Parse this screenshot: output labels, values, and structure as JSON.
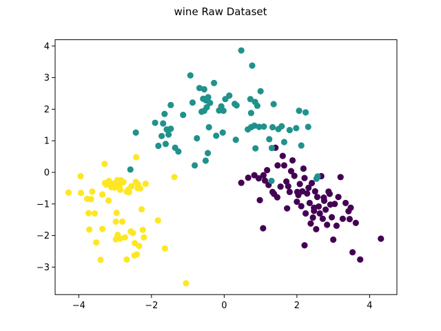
{
  "chart_data": {
    "type": "scatter",
    "title": "wine Raw Dataset",
    "xlabel": "",
    "ylabel": "",
    "xlim": [
      -4.65,
      4.75
    ],
    "ylim": [
      -3.87,
      4.2
    ],
    "xticks": [
      -4,
      -2,
      0,
      2,
      4
    ],
    "yticks": [
      -3,
      -2,
      -1,
      0,
      1,
      2,
      3,
      4
    ],
    "grid": false,
    "series": [
      {
        "color": "#440154",
        "points": [
          [
            0.47,
            -0.33
          ],
          [
            0.66,
            -0.17
          ],
          [
            0.95,
            -0.19
          ],
          [
            1.08,
            -0.09
          ],
          [
            1.12,
            -0.26
          ],
          [
            1.18,
            0.07
          ],
          [
            1.33,
            -0.62
          ],
          [
            1.37,
            -0.68
          ],
          [
            1.41,
            0.78
          ],
          [
            1.47,
            0.22
          ],
          [
            1.55,
            -0.45
          ],
          [
            1.61,
            0.52
          ],
          [
            1.65,
            0.22
          ],
          [
            1.71,
            -0.29
          ],
          [
            1.76,
            -0.44
          ],
          [
            1.8,
            -0.62
          ],
          [
            1.84,
            0.04
          ],
          [
            1.88,
            0.38
          ],
          [
            1.93,
            -0.11
          ],
          [
            2.0,
            -0.93
          ],
          [
            2.04,
            -0.72
          ],
          [
            2.08,
            -0.37
          ],
          [
            2.12,
            -1.07
          ],
          [
            2.15,
            -0.6
          ],
          [
            2.18,
            0.12
          ],
          [
            2.21,
            -0.18
          ],
          [
            2.24,
            -1.3
          ],
          [
            2.28,
            -0.67
          ],
          [
            2.32,
            -0.49
          ],
          [
            2.35,
            -0.97
          ],
          [
            2.38,
            -1.62
          ],
          [
            2.41,
            -0.34
          ],
          [
            2.44,
            -1.43
          ],
          [
            2.47,
            -1.12
          ],
          [
            2.5,
            -0.6
          ],
          [
            2.53,
            -1.8
          ],
          [
            2.56,
            -0.78
          ],
          [
            2.6,
            -1.08
          ],
          [
            2.63,
            -1.3
          ],
          [
            2.67,
            -0.12
          ],
          [
            2.71,
            -1.47
          ],
          [
            2.75,
            -0.9
          ],
          [
            2.79,
            -1.18
          ],
          [
            2.83,
            -1.66
          ],
          [
            2.87,
            -0.61
          ],
          [
            2.92,
            -1.02
          ],
          [
            2.96,
            -1.42
          ],
          [
            3.0,
            -2.13
          ],
          [
            3.04,
            -1.0
          ],
          [
            3.09,
            -1.69
          ],
          [
            3.14,
            -0.78
          ],
          [
            3.2,
            -0.15
          ],
          [
            3.26,
            -1.47
          ],
          [
            3.34,
            -0.97
          ],
          [
            3.42,
            -1.23
          ],
          [
            3.48,
            -1.12
          ],
          [
            3.53,
            -2.53
          ],
          [
            3.62,
            -1.6
          ],
          [
            3.74,
            -2.76
          ],
          [
            4.31,
            -2.1
          ],
          [
            0.83,
            -0.09
          ],
          [
            0.98,
            -0.88
          ],
          [
            1.07,
            -1.77
          ],
          [
            1.22,
            -0.4
          ],
          [
            1.46,
            -0.79
          ],
          [
            1.73,
            -1.14
          ],
          [
            2.01,
            -0.62
          ],
          [
            2.21,
            -2.31
          ],
          [
            2.47,
            -1.22
          ],
          [
            2.74,
            -0.8
          ],
          [
            2.9,
            -0.68
          ],
          [
            3.45,
            -1.48
          ]
        ]
      },
      {
        "color": "#21918c",
        "points": [
          [
            -2.43,
            1.26
          ],
          [
            -2.58,
            0.09
          ],
          [
            -1.9,
            1.57
          ],
          [
            -1.81,
            0.84
          ],
          [
            -1.72,
            1.15
          ],
          [
            -1.68,
            1.55
          ],
          [
            -1.61,
            0.9
          ],
          [
            -1.58,
            1.36
          ],
          [
            -1.53,
            1.2
          ],
          [
            -1.47,
            1.38
          ],
          [
            -1.35,
            0.78
          ],
          [
            -1.26,
            0.66
          ],
          [
            -1.13,
            1.82
          ],
          [
            -0.93,
            3.07
          ],
          [
            -0.87,
            2.21
          ],
          [
            -0.81,
            0.22
          ],
          [
            -0.75,
            1.08
          ],
          [
            -0.68,
            2.67
          ],
          [
            -0.62,
            1.92
          ],
          [
            -0.58,
            2.33
          ],
          [
            -0.55,
            2.63
          ],
          [
            -0.51,
            0.37
          ],
          [
            -0.48,
            2.06
          ],
          [
            -0.45,
            0.61
          ],
          [
            -0.42,
            1.43
          ],
          [
            -0.39,
            2.2
          ],
          [
            -0.28,
            2.83
          ],
          [
            -0.22,
            1.16
          ],
          [
            -0.14,
            1.96
          ],
          [
            -0.08,
            2.09
          ],
          [
            0.03,
            2.32
          ],
          [
            0.14,
            2.43
          ],
          [
            0.32,
            1.03
          ],
          [
            0.34,
            2.12
          ],
          [
            0.47,
            3.86
          ],
          [
            0.65,
            1.36
          ],
          [
            0.74,
            1.43
          ],
          [
            0.77,
            3.38
          ],
          [
            0.83,
            1.48
          ],
          [
            0.86,
            0.76
          ],
          [
            0.91,
            2.11
          ],
          [
            0.96,
            1.44
          ],
          [
            1.0,
            2.57
          ],
          [
            1.09,
            1.45
          ],
          [
            1.24,
            1.05
          ],
          [
            1.31,
            0.77
          ],
          [
            1.33,
            1.43
          ],
          [
            1.36,
            2.16
          ],
          [
            1.49,
            1.37
          ],
          [
            1.58,
            1.46
          ],
          [
            1.65,
            0.96
          ],
          [
            1.8,
            1.34
          ],
          [
            1.98,
            1.4
          ],
          [
            2.06,
            1.95
          ],
          [
            2.12,
            0.85
          ],
          [
            2.24,
            1.9
          ],
          [
            2.31,
            1.44
          ],
          [
            2.54,
            -0.2
          ],
          [
            2.57,
            -0.13
          ],
          [
            -1.64,
            1.85
          ],
          [
            -1.47,
            2.13
          ],
          [
            -0.5,
            2.28
          ],
          [
            -0.55,
            1.95
          ],
          [
            -0.44,
            2.38
          ],
          [
            -0.02,
            1.95
          ],
          [
            -0.04,
            1.26
          ],
          [
            0.29,
            2.17
          ],
          [
            0.72,
            2.32
          ],
          [
            0.74,
            1.88
          ],
          [
            0.85,
            2.23
          ],
          [
            1.3,
            -0.27
          ],
          [
            -0.46,
            2.35
          ]
        ]
      },
      {
        "color": "#fde725",
        "points": [
          [
            -4.28,
            -0.64
          ],
          [
            -3.95,
            -0.12
          ],
          [
            -3.94,
            -0.65
          ],
          [
            -3.77,
            -0.84
          ],
          [
            -3.73,
            -1.29
          ],
          [
            -3.71,
            -1.81
          ],
          [
            -3.66,
            -0.85
          ],
          [
            -3.56,
            -1.3
          ],
          [
            -3.52,
            -2.22
          ],
          [
            -3.4,
            -2.77
          ],
          [
            -3.35,
            -0.7
          ],
          [
            -3.28,
            -0.34
          ],
          [
            -3.24,
            -0.39
          ],
          [
            -3.17,
            -0.27
          ],
          [
            -3.1,
            -0.47
          ],
          [
            -3.05,
            -0.36
          ],
          [
            -3.01,
            -0.48
          ],
          [
            -2.98,
            -1.56
          ],
          [
            -2.96,
            -1.28
          ],
          [
            -2.93,
            -1.98
          ],
          [
            -2.88,
            -0.43
          ],
          [
            -2.86,
            -0.55
          ],
          [
            -2.8,
            -1.56
          ],
          [
            -2.77,
            -0.31
          ],
          [
            -2.73,
            -2.06
          ],
          [
            -2.68,
            -2.76
          ],
          [
            -2.62,
            -0.63
          ],
          [
            -2.57,
            -1.87
          ],
          [
            -2.55,
            -0.44
          ],
          [
            -2.51,
            -1.92
          ],
          [
            -2.46,
            -2.24
          ],
          [
            -2.43,
            -0.3
          ],
          [
            -2.4,
            -2.6
          ],
          [
            -2.37,
            -0.38
          ],
          [
            -2.34,
            -2.33
          ],
          [
            -2.27,
            -1.17
          ],
          [
            -2.21,
            -2.06
          ],
          [
            -2.16,
            -0.36
          ],
          [
            -1.82,
            -1.52
          ],
          [
            -1.63,
            -2.41
          ],
          [
            -1.37,
            -0.15
          ],
          [
            -1.05,
            -3.51
          ],
          [
            -3.63,
            -0.61
          ],
          [
            -3.35,
            -1.79
          ],
          [
            -3.02,
            -0.38
          ],
          [
            -2.86,
            -2.1
          ],
          [
            -2.63,
            -0.54
          ],
          [
            -2.42,
            0.48
          ],
          [
            -2.38,
            -0.5
          ],
          [
            -2.24,
            -1.82
          ],
          [
            -2.84,
            -0.25
          ],
          [
            -3.18,
            -0.89
          ],
          [
            -2.94,
            -0.25
          ],
          [
            -2.47,
            -2.63
          ],
          [
            -3.29,
            0.27
          ],
          [
            -2.98,
            -2.12
          ],
          [
            -2.68,
            -0.61
          ],
          [
            -2.31,
            -0.51
          ]
        ]
      }
    ]
  }
}
